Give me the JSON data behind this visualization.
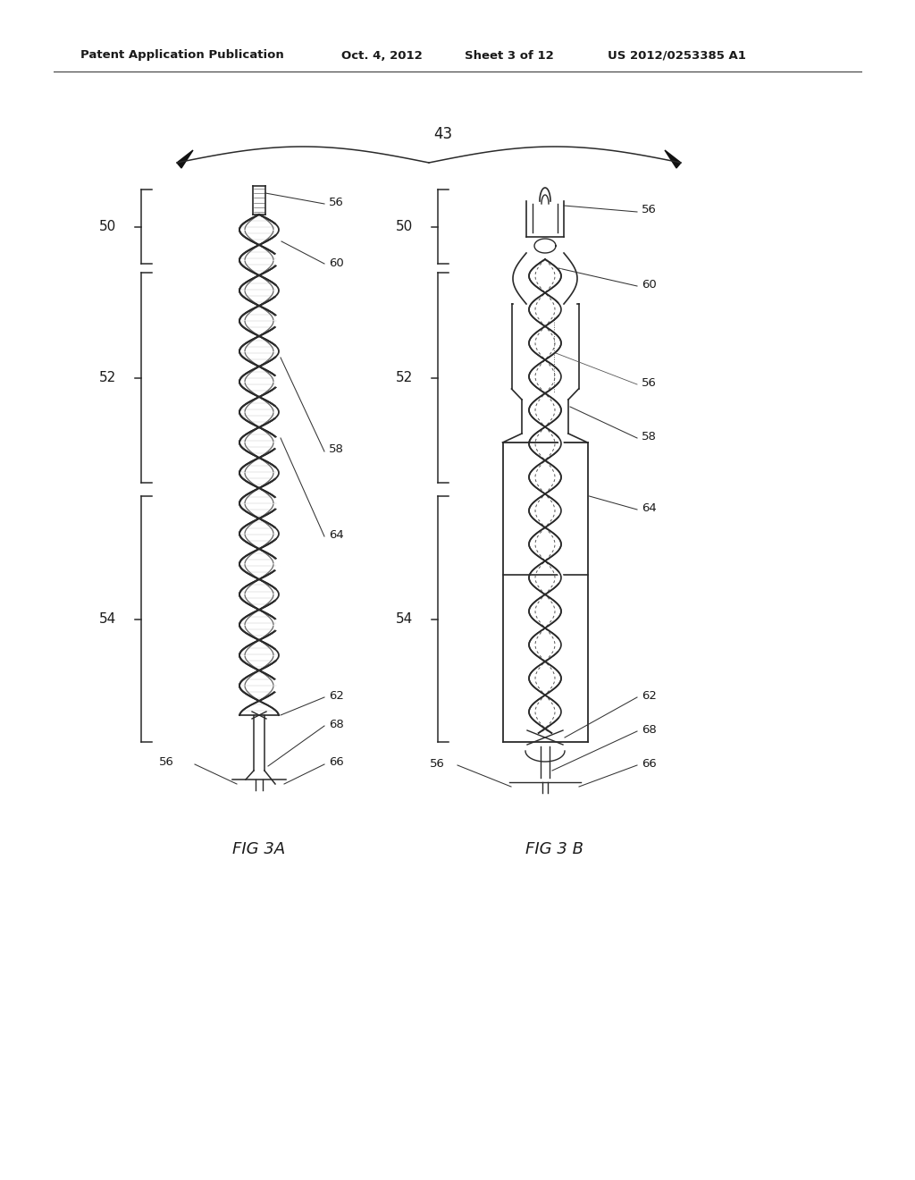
{
  "background_color": "#ffffff",
  "header_text": "Patent Application Publication",
  "header_date": "Oct. 4, 2012",
  "header_sheet": "Sheet 3 of 12",
  "header_patent": "US 2012/0253385 A1",
  "fig_label_3a": "FIG 3A",
  "fig_label_3b": "FIG 3 B",
  "label_43": "43",
  "line_color": "#2a2a2a",
  "text_color": "#1a1a1a",
  "lw_main": 1.0,
  "lw_thick": 1.4,
  "lw_thin": 0.7
}
